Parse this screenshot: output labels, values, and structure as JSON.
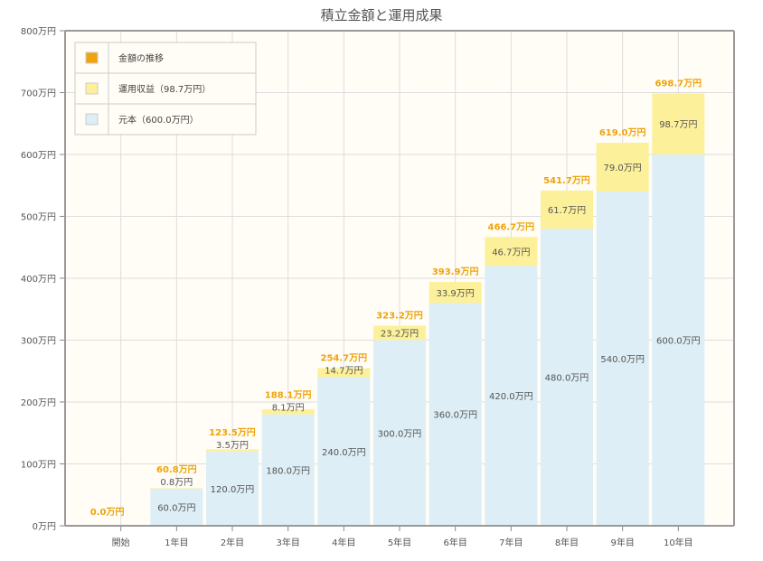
{
  "chart_data": {
    "type": "bar",
    "stacked": true,
    "title": "積立金額と運用成果",
    "categories": [
      "開始",
      "1年目",
      "2年目",
      "3年目",
      "4年目",
      "5年目",
      "6年目",
      "7年目",
      "8年目",
      "9年目",
      "10年目"
    ],
    "series": [
      {
        "name": "元本（600.0万円）",
        "color": "#ddeef6",
        "values": [
          0,
          60,
          120,
          180,
          240,
          300,
          360,
          420,
          480,
          540,
          600
        ],
        "labels": [
          "",
          "60.0万円",
          "120.0万円",
          "180.0万円",
          "240.0万円",
          "300.0万円",
          "360.0万円",
          "420.0万円",
          "480.0万円",
          "540.0万円",
          "600.0万円"
        ]
      },
      {
        "name": "運用収益（98.7万円）",
        "color": "#fcf09a",
        "values": [
          0,
          0.8,
          3.5,
          8.1,
          14.7,
          23.2,
          33.9,
          46.7,
          61.7,
          79.0,
          98.7
        ],
        "labels": [
          "",
          "0.8万円",
          "3.5万円",
          "8.1万円",
          "14.7万円",
          "23.2万円",
          "33.9万円",
          "46.7万円",
          "61.7万円",
          "79.0万円",
          "98.7万円"
        ]
      }
    ],
    "totals": {
      "name": "金額の推移",
      "color": "#f0a30a",
      "labels": [
        "0.0万円",
        "60.8万円",
        "123.5万円",
        "188.1万円",
        "254.7万円",
        "323.2万円",
        "393.9万円",
        "466.7万円",
        "541.7万円",
        "619.0万円",
        "698.7万円"
      ]
    },
    "yticks": [
      "0万円",
      "100万円",
      "200万円",
      "300万円",
      "400万円",
      "500万円",
      "600万円",
      "700万円",
      "800万円"
    ],
    "ylim": [
      0,
      800
    ],
    "grid": true,
    "legend_position": "top-left"
  }
}
